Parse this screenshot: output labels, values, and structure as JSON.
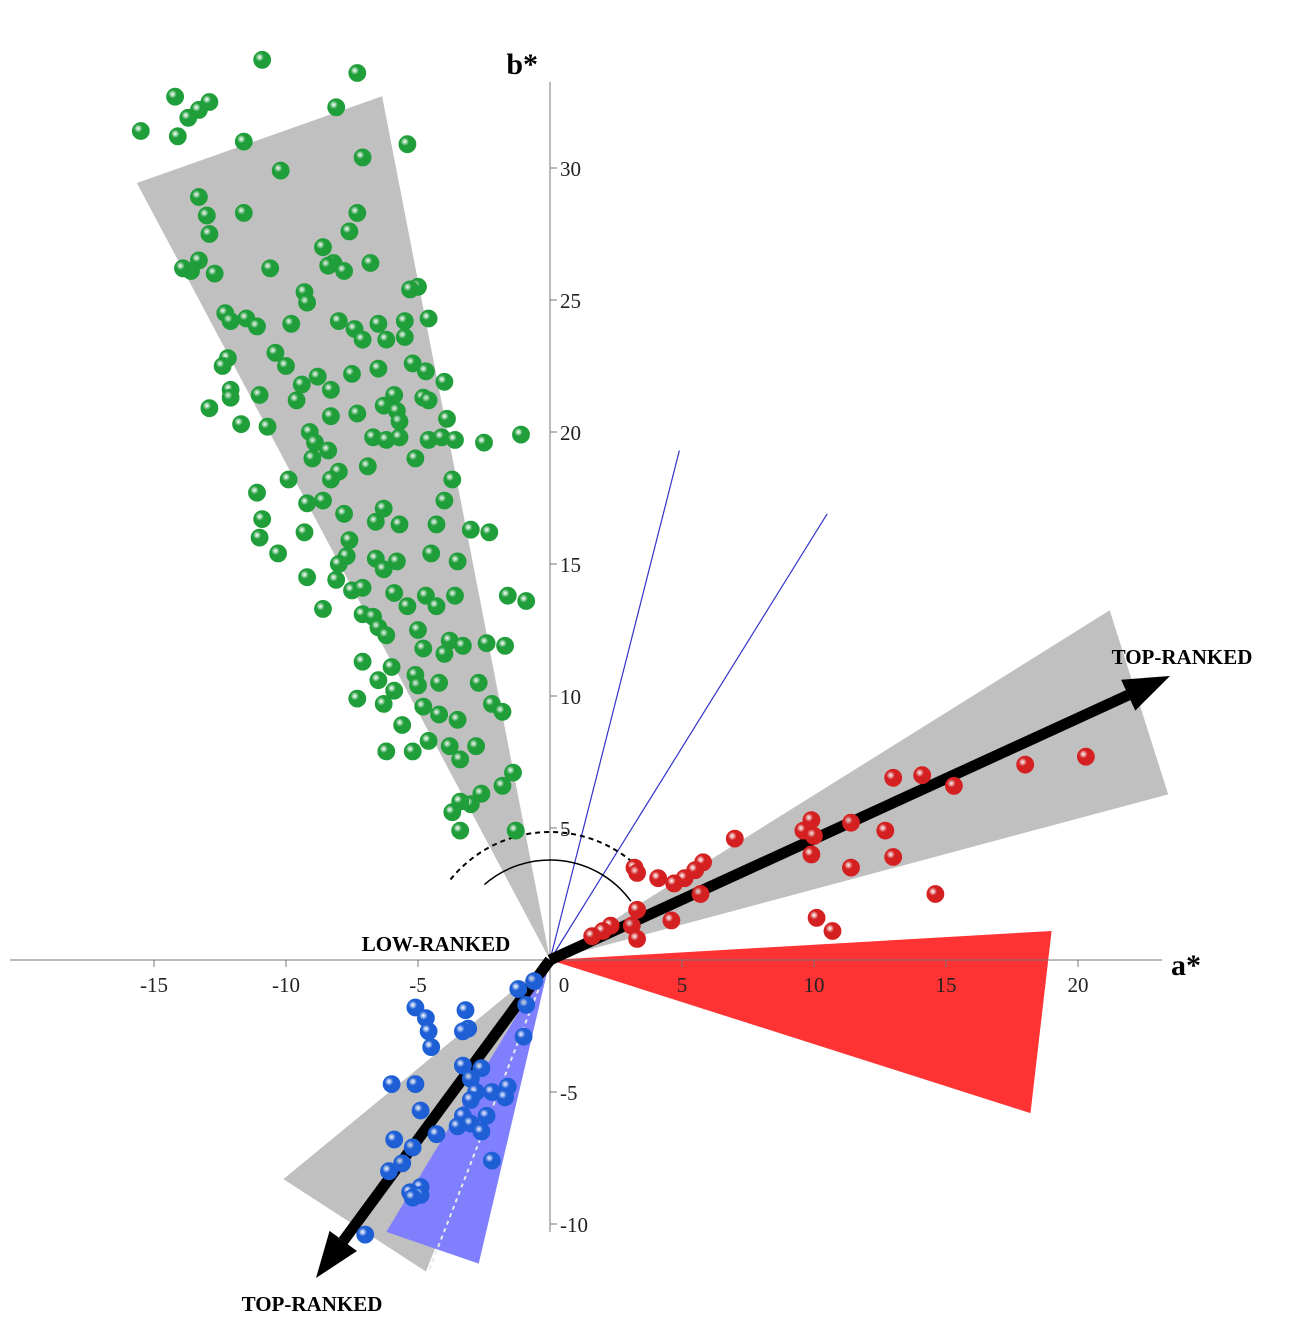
{
  "chart_data": {
    "type": "scatter",
    "title": "",
    "xlabel": "a*",
    "ylabel": "b*",
    "xlim": [
      -20.5,
      24
    ],
    "ylim": [
      -12.5,
      35
    ],
    "x_ticks": [
      -15,
      -10,
      -5,
      0,
      5,
      10,
      15,
      20
    ],
    "y_ticks": [
      -10,
      -5,
      5,
      10,
      15,
      20,
      25,
      30
    ],
    "grid": false,
    "legend": "none",
    "colors": {
      "green": "#1f9e3a",
      "red": "#d42020",
      "blue": "#1e5fd6",
      "sector_gray": "#c0c0c0",
      "sector_red": "#ff3333",
      "sector_blue": "#8080ff",
      "ref_line": "#3333cc"
    },
    "series": [
      {
        "color_key": "green",
        "points": [
          [
            -10.9,
            34.1
          ],
          [
            -7.3,
            33.6
          ],
          [
            -14.2,
            32.7
          ],
          [
            -13.3,
            32.2
          ],
          [
            -12.9,
            32.5
          ],
          [
            -13.7,
            31.9
          ],
          [
            -15.5,
            31.4
          ],
          [
            -14.1,
            31.2
          ],
          [
            -11.6,
            31.0
          ],
          [
            -8.1,
            32.3
          ],
          [
            -5.4,
            30.9
          ],
          [
            -7.1,
            30.4
          ],
          [
            -10.2,
            29.9
          ],
          [
            -13.3,
            28.9
          ],
          [
            -13.0,
            28.2
          ],
          [
            -11.6,
            28.3
          ],
          [
            -7.3,
            28.3
          ],
          [
            -12.9,
            27.5
          ],
          [
            -7.6,
            27.6
          ],
          [
            -8.6,
            27.0
          ],
          [
            -8.2,
            26.4
          ],
          [
            -13.6,
            26.1
          ],
          [
            -12.7,
            26.0
          ],
          [
            -13.9,
            26.2
          ],
          [
            -13.3,
            26.5
          ],
          [
            -10.6,
            26.2
          ],
          [
            -7.8,
            26.1
          ],
          [
            -8.4,
            26.3
          ],
          [
            -6.8,
            26.4
          ],
          [
            -5.0,
            25.5
          ],
          [
            -5.3,
            25.4
          ],
          [
            -9.3,
            25.3
          ],
          [
            -9.2,
            24.9
          ],
          [
            -12.3,
            24.5
          ],
          [
            -11.5,
            24.3
          ],
          [
            -12.1,
            24.2
          ],
          [
            -11.1,
            24.0
          ],
          [
            -9.8,
            24.1
          ],
          [
            -8.0,
            24.2
          ],
          [
            -6.5,
            24.1
          ],
          [
            -5.5,
            24.2
          ],
          [
            -4.6,
            24.3
          ],
          [
            -7.4,
            23.9
          ],
          [
            -7.1,
            23.5
          ],
          [
            -6.2,
            23.5
          ],
          [
            -5.5,
            23.6
          ],
          [
            -10.4,
            23.0
          ],
          [
            -12.2,
            22.8
          ],
          [
            -12.4,
            22.5
          ],
          [
            -10.0,
            22.5
          ],
          [
            -8.8,
            22.1
          ],
          [
            -6.5,
            22.4
          ],
          [
            -5.2,
            22.6
          ],
          [
            -4.7,
            22.3
          ],
          [
            -7.5,
            22.2
          ],
          [
            -9.4,
            21.8
          ],
          [
            -8.3,
            21.6
          ],
          [
            -12.1,
            21.6
          ],
          [
            -11.0,
            21.4
          ],
          [
            -9.6,
            21.2
          ],
          [
            -5.9,
            21.4
          ],
          [
            -4.8,
            21.3
          ],
          [
            -4.0,
            21.9
          ],
          [
            -4.6,
            21.2
          ],
          [
            -6.3,
            21.0
          ],
          [
            -5.8,
            20.8
          ],
          [
            -7.3,
            20.7
          ],
          [
            -8.3,
            20.6
          ],
          [
            -10.7,
            20.2
          ],
          [
            -5.7,
            20.4
          ],
          [
            -3.9,
            20.5
          ],
          [
            -12.9,
            20.9
          ],
          [
            -12.1,
            21.3
          ],
          [
            -11.7,
            20.3
          ],
          [
            -9.1,
            20.0
          ],
          [
            -8.9,
            19.6
          ],
          [
            -6.7,
            19.8
          ],
          [
            -6.2,
            19.7
          ],
          [
            -5.7,
            19.8
          ],
          [
            -4.6,
            19.7
          ],
          [
            -4.1,
            19.8
          ],
          [
            -3.6,
            19.7
          ],
          [
            -2.5,
            19.6
          ],
          [
            -1.1,
            19.9
          ],
          [
            -8.4,
            19.3
          ],
          [
            -9.0,
            19.0
          ],
          [
            -5.1,
            19.0
          ],
          [
            -6.9,
            18.7
          ],
          [
            -8.0,
            18.5
          ],
          [
            -8.3,
            18.2
          ],
          [
            -9.9,
            18.2
          ],
          [
            -3.7,
            18.2
          ],
          [
            -11.1,
            17.7
          ],
          [
            -9.2,
            17.3
          ],
          [
            -8.6,
            17.4
          ],
          [
            -6.3,
            17.1
          ],
          [
            -4.0,
            17.4
          ],
          [
            -7.8,
            16.9
          ],
          [
            -6.6,
            16.6
          ],
          [
            -5.7,
            16.5
          ],
          [
            -4.3,
            16.5
          ],
          [
            -3.0,
            16.3
          ],
          [
            -2.3,
            16.2
          ],
          [
            -10.9,
            16.7
          ],
          [
            -11.0,
            16.0
          ],
          [
            -9.3,
            16.2
          ],
          [
            -7.6,
            15.9
          ],
          [
            -7.7,
            15.3
          ],
          [
            -8.0,
            15.0
          ],
          [
            -6.6,
            15.2
          ],
          [
            -5.8,
            15.1
          ],
          [
            -4.5,
            15.4
          ],
          [
            -3.5,
            15.1
          ],
          [
            -6.3,
            14.8
          ],
          [
            -10.3,
            15.4
          ],
          [
            -9.2,
            14.5
          ],
          [
            -8.1,
            14.4
          ],
          [
            -7.5,
            14.0
          ],
          [
            -7.1,
            14.1
          ],
          [
            -5.9,
            13.9
          ],
          [
            -4.7,
            13.8
          ],
          [
            -3.6,
            13.8
          ],
          [
            -1.6,
            13.8
          ],
          [
            -0.9,
            13.6
          ],
          [
            -8.6,
            13.3
          ],
          [
            -5.4,
            13.4
          ],
          [
            -4.3,
            13.4
          ],
          [
            -7.1,
            13.1
          ],
          [
            -6.7,
            13.0
          ],
          [
            -6.5,
            12.6
          ],
          [
            -6.2,
            12.3
          ],
          [
            -5.0,
            12.5
          ],
          [
            -3.8,
            12.1
          ],
          [
            -2.4,
            12.0
          ],
          [
            -4.8,
            11.8
          ],
          [
            -4.0,
            11.6
          ],
          [
            -3.3,
            11.9
          ],
          [
            -1.7,
            11.9
          ],
          [
            -7.1,
            11.3
          ],
          [
            -6.0,
            11.1
          ],
          [
            -5.1,
            10.8
          ],
          [
            -4.2,
            10.5
          ],
          [
            -2.7,
            10.5
          ],
          [
            -6.5,
            10.6
          ],
          [
            -5.9,
            10.2
          ],
          [
            -5.0,
            10.4
          ],
          [
            -7.3,
            9.9
          ],
          [
            -6.3,
            9.7
          ],
          [
            -4.8,
            9.6
          ],
          [
            -4.2,
            9.3
          ],
          [
            -3.5,
            9.1
          ],
          [
            -2.2,
            9.7
          ],
          [
            -1.8,
            9.4
          ],
          [
            -5.6,
            8.9
          ],
          [
            -4.6,
            8.3
          ],
          [
            -3.8,
            8.1
          ],
          [
            -2.8,
            8.1
          ],
          [
            -6.2,
            7.9
          ],
          [
            -5.2,
            7.9
          ],
          [
            -3.4,
            7.6
          ],
          [
            -1.4,
            7.1
          ],
          [
            -1.8,
            6.6
          ],
          [
            -2.6,
            6.3
          ],
          [
            -3.0,
            5.9
          ],
          [
            -3.4,
            6.0
          ],
          [
            -3.7,
            5.6
          ],
          [
            -3.4,
            4.9
          ],
          [
            -1.3,
            4.9
          ]
        ]
      },
      {
        "color_key": "red",
        "points": [
          [
            20.3,
            7.7
          ],
          [
            18.0,
            7.4
          ],
          [
            15.3,
            6.6
          ],
          [
            14.1,
            7.0
          ],
          [
            13.0,
            6.9
          ],
          [
            11.4,
            5.2
          ],
          [
            12.7,
            4.9
          ],
          [
            9.9,
            5.3
          ],
          [
            9.6,
            4.9
          ],
          [
            10.0,
            4.7
          ],
          [
            9.9,
            4.0
          ],
          [
            7.0,
            4.6
          ],
          [
            13.0,
            3.9
          ],
          [
            11.4,
            3.5
          ],
          [
            14.6,
            2.5
          ],
          [
            10.1,
            1.6
          ],
          [
            10.7,
            1.1
          ],
          [
            5.8,
            3.7
          ],
          [
            5.5,
            3.4
          ],
          [
            5.1,
            3.1
          ],
          [
            4.7,
            2.9
          ],
          [
            4.1,
            3.1
          ],
          [
            5.7,
            2.5
          ],
          [
            3.2,
            3.5
          ],
          [
            3.3,
            3.3
          ],
          [
            3.3,
            1.9
          ],
          [
            4.6,
            1.5
          ],
          [
            3.1,
            1.3
          ],
          [
            3.3,
            0.8
          ],
          [
            2.3,
            1.3
          ],
          [
            2.0,
            1.1
          ],
          [
            1.6,
            0.9
          ]
        ]
      },
      {
        "color_key": "blue",
        "points": [
          [
            -0.6,
            -0.8
          ],
          [
            -1.2,
            -1.1
          ],
          [
            -0.9,
            -1.7
          ],
          [
            -5.1,
            -1.8
          ],
          [
            -3.2,
            -1.9
          ],
          [
            -4.7,
            -2.2
          ],
          [
            -4.6,
            -2.7
          ],
          [
            -3.1,
            -2.6
          ],
          [
            -3.3,
            -2.7
          ],
          [
            -1.0,
            -2.9
          ],
          [
            -4.5,
            -3.3
          ],
          [
            -3.3,
            -4.0
          ],
          [
            -2.6,
            -4.1
          ],
          [
            -3.0,
            -4.5
          ],
          [
            -6.0,
            -4.7
          ],
          [
            -5.1,
            -4.7
          ],
          [
            -2.8,
            -5.0
          ],
          [
            -2.2,
            -5.0
          ],
          [
            -1.6,
            -4.8
          ],
          [
            -1.7,
            -5.2
          ],
          [
            -3.0,
            -5.3
          ],
          [
            -4.9,
            -5.7
          ],
          [
            -3.3,
            -5.9
          ],
          [
            -3.0,
            -6.2
          ],
          [
            -2.4,
            -5.9
          ],
          [
            -2.6,
            -6.5
          ],
          [
            -3.5,
            -6.3
          ],
          [
            -4.3,
            -6.6
          ],
          [
            -5.9,
            -6.8
          ],
          [
            -5.2,
            -7.1
          ],
          [
            -2.2,
            -7.6
          ],
          [
            -6.1,
            -8.0
          ],
          [
            -5.6,
            -7.7
          ],
          [
            -4.9,
            -8.6
          ],
          [
            -5.3,
            -8.8
          ],
          [
            -4.9,
            -8.9
          ],
          [
            -5.2,
            -9.0
          ],
          [
            -7.0,
            -10.4
          ]
        ]
      }
    ],
    "annotations": {
      "top_right_label": "TOP-RANKED",
      "center_label": "LOW-RANKED",
      "bottom_left_label": "TOP-RANKED"
    }
  }
}
